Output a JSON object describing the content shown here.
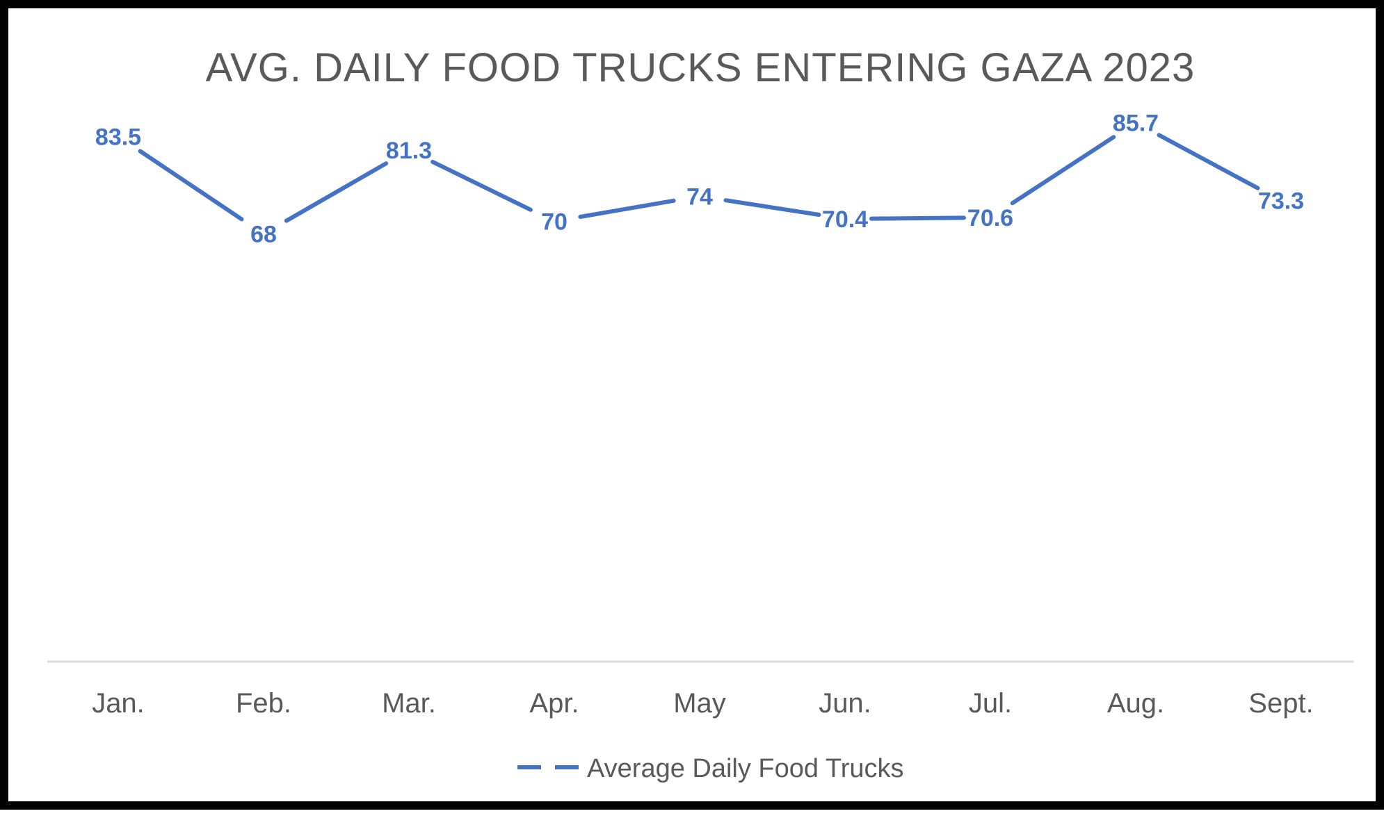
{
  "chart_data": {
    "type": "line",
    "title": "AVG. DAILY FOOD TRUCKS ENTERING GAZA 2023",
    "categories": [
      "Jan.",
      "Feb.",
      "Mar.",
      "Apr.",
      "May",
      "Jun.",
      "Jul.",
      "Aug.",
      "Sept."
    ],
    "series": [
      {
        "name": "Average Daily Food Trucks",
        "values": [
          83.5,
          68,
          81.3,
          70,
          74,
          70.4,
          70.6,
          85.7,
          73.3
        ],
        "color": "#4472C4"
      }
    ],
    "data_labels": [
      "83.5",
      "68",
      "81.3",
      "70",
      "74",
      "70.4",
      "70.6",
      "85.7",
      "73.3"
    ],
    "ylim": [
      0,
      100
    ],
    "grid": false,
    "legend_position": "bottom"
  }
}
